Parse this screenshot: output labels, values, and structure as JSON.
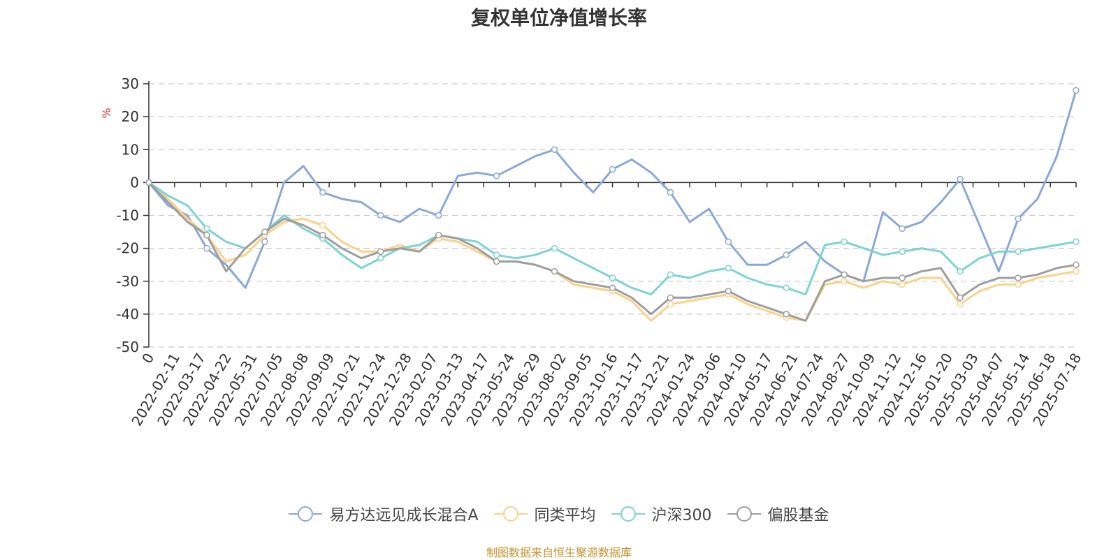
{
  "chart_data": {
    "type": "line",
    "title": "复权单位净值增长率",
    "ylabel": "%",
    "ylim": [
      -50,
      30
    ],
    "yticks": [
      30,
      20,
      10,
      0,
      -10,
      -20,
      -30,
      -40,
      -50
    ],
    "grid": true,
    "legend_position": "bottom",
    "x_tick_labels": [
      "0",
      "2022-02-11",
      "2022-03-17",
      "2022-04-22",
      "2022-05-31",
      "2022-07-05",
      "2022-08-08",
      "2022-09-09",
      "2022-10-21",
      "2022-11-24",
      "2022-12-28",
      "2023-02-07",
      "2023-03-13",
      "2023-04-17",
      "2023-05-24",
      "2023-06-29",
      "2023-08-02",
      "2023-09-05",
      "2023-10-16",
      "2023-11-17",
      "2023-12-21",
      "2024-01-24",
      "2024-03-06",
      "2024-04-10",
      "2024-05-17",
      "2024-06-21",
      "2024-07-24",
      "2024-08-27",
      "2024-10-09",
      "2024-11-12",
      "2024-12-16",
      "2025-01-20",
      "2025-03-03",
      "2025-04-07",
      "2025-05-14",
      "2025-06-18",
      "2025-07-18"
    ],
    "series": [
      {
        "name": "易方达远见成长混合A",
        "color": "#8aa8d8",
        "values": [
          0,
          -7,
          -10,
          -20,
          -25,
          -32,
          -18,
          0,
          5,
          -3,
          -5,
          -6,
          -10,
          -12,
          -8,
          -10,
          2,
          3,
          2,
          5,
          8,
          10,
          3,
          -3,
          4,
          7,
          3,
          -3,
          -12,
          -8,
          -18,
          -25,
          -25,
          -22,
          -18,
          -24,
          -28,
          -30,
          -9,
          -14,
          -12,
          -6,
          1,
          -13,
          -27,
          -11,
          -5,
          8,
          28
        ]
      },
      {
        "name": "同类平均",
        "color": "#f9d28a",
        "values": [
          0,
          -5,
          -11,
          -16,
          -24,
          -22,
          -16,
          -12,
          -11,
          -13,
          -18,
          -21,
          -21,
          -19,
          -21,
          -17,
          -18,
          -21,
          -24,
          -24,
          -25,
          -27,
          -31,
          -32,
          -33,
          -36,
          -42,
          -37,
          -36,
          -35,
          -34,
          -37,
          -39,
          -41,
          -42,
          -31,
          -30,
          -32,
          -30,
          -31,
          -29,
          -29,
          -37,
          -33,
          -31,
          -31,
          -29,
          -28,
          -27
        ]
      },
      {
        "name": "沪深300",
        "color": "#7dd3d3",
        "values": [
          0,
          -4,
          -7,
          -14,
          -18,
          -20,
          -15,
          -10,
          -14,
          -17,
          -22,
          -26,
          -23,
          -20,
          -19,
          -16,
          -17,
          -18,
          -22,
          -23,
          -22,
          -20,
          -23,
          -26,
          -29,
          -32,
          -34,
          -28,
          -29,
          -27,
          -26,
          -29,
          -31,
          -32,
          -34,
          -19,
          -18,
          -20,
          -22,
          -21,
          -20,
          -21,
          -27,
          -23,
          -21,
          -21,
          -20,
          -19,
          -18
        ]
      },
      {
        "name": "偏股基金",
        "color": "#9e9e9e",
        "values": [
          0,
          -6,
          -12,
          -16,
          -27,
          -20,
          -15,
          -11,
          -13,
          -16,
          -20,
          -23,
          -21,
          -20,
          -21,
          -16,
          -17,
          -20,
          -24,
          -24,
          -25,
          -27,
          -30,
          -31,
          -32,
          -35,
          -40,
          -35,
          -35,
          -34,
          -33,
          -36,
          -38,
          -40,
          -42,
          -30,
          -28,
          -30,
          -29,
          -29,
          -27,
          -26,
          -35,
          -31,
          -29,
          -29,
          -28,
          -26,
          -25
        ]
      }
    ]
  },
  "footer": {
    "source": "制图数据来自恒生聚源数据库"
  }
}
